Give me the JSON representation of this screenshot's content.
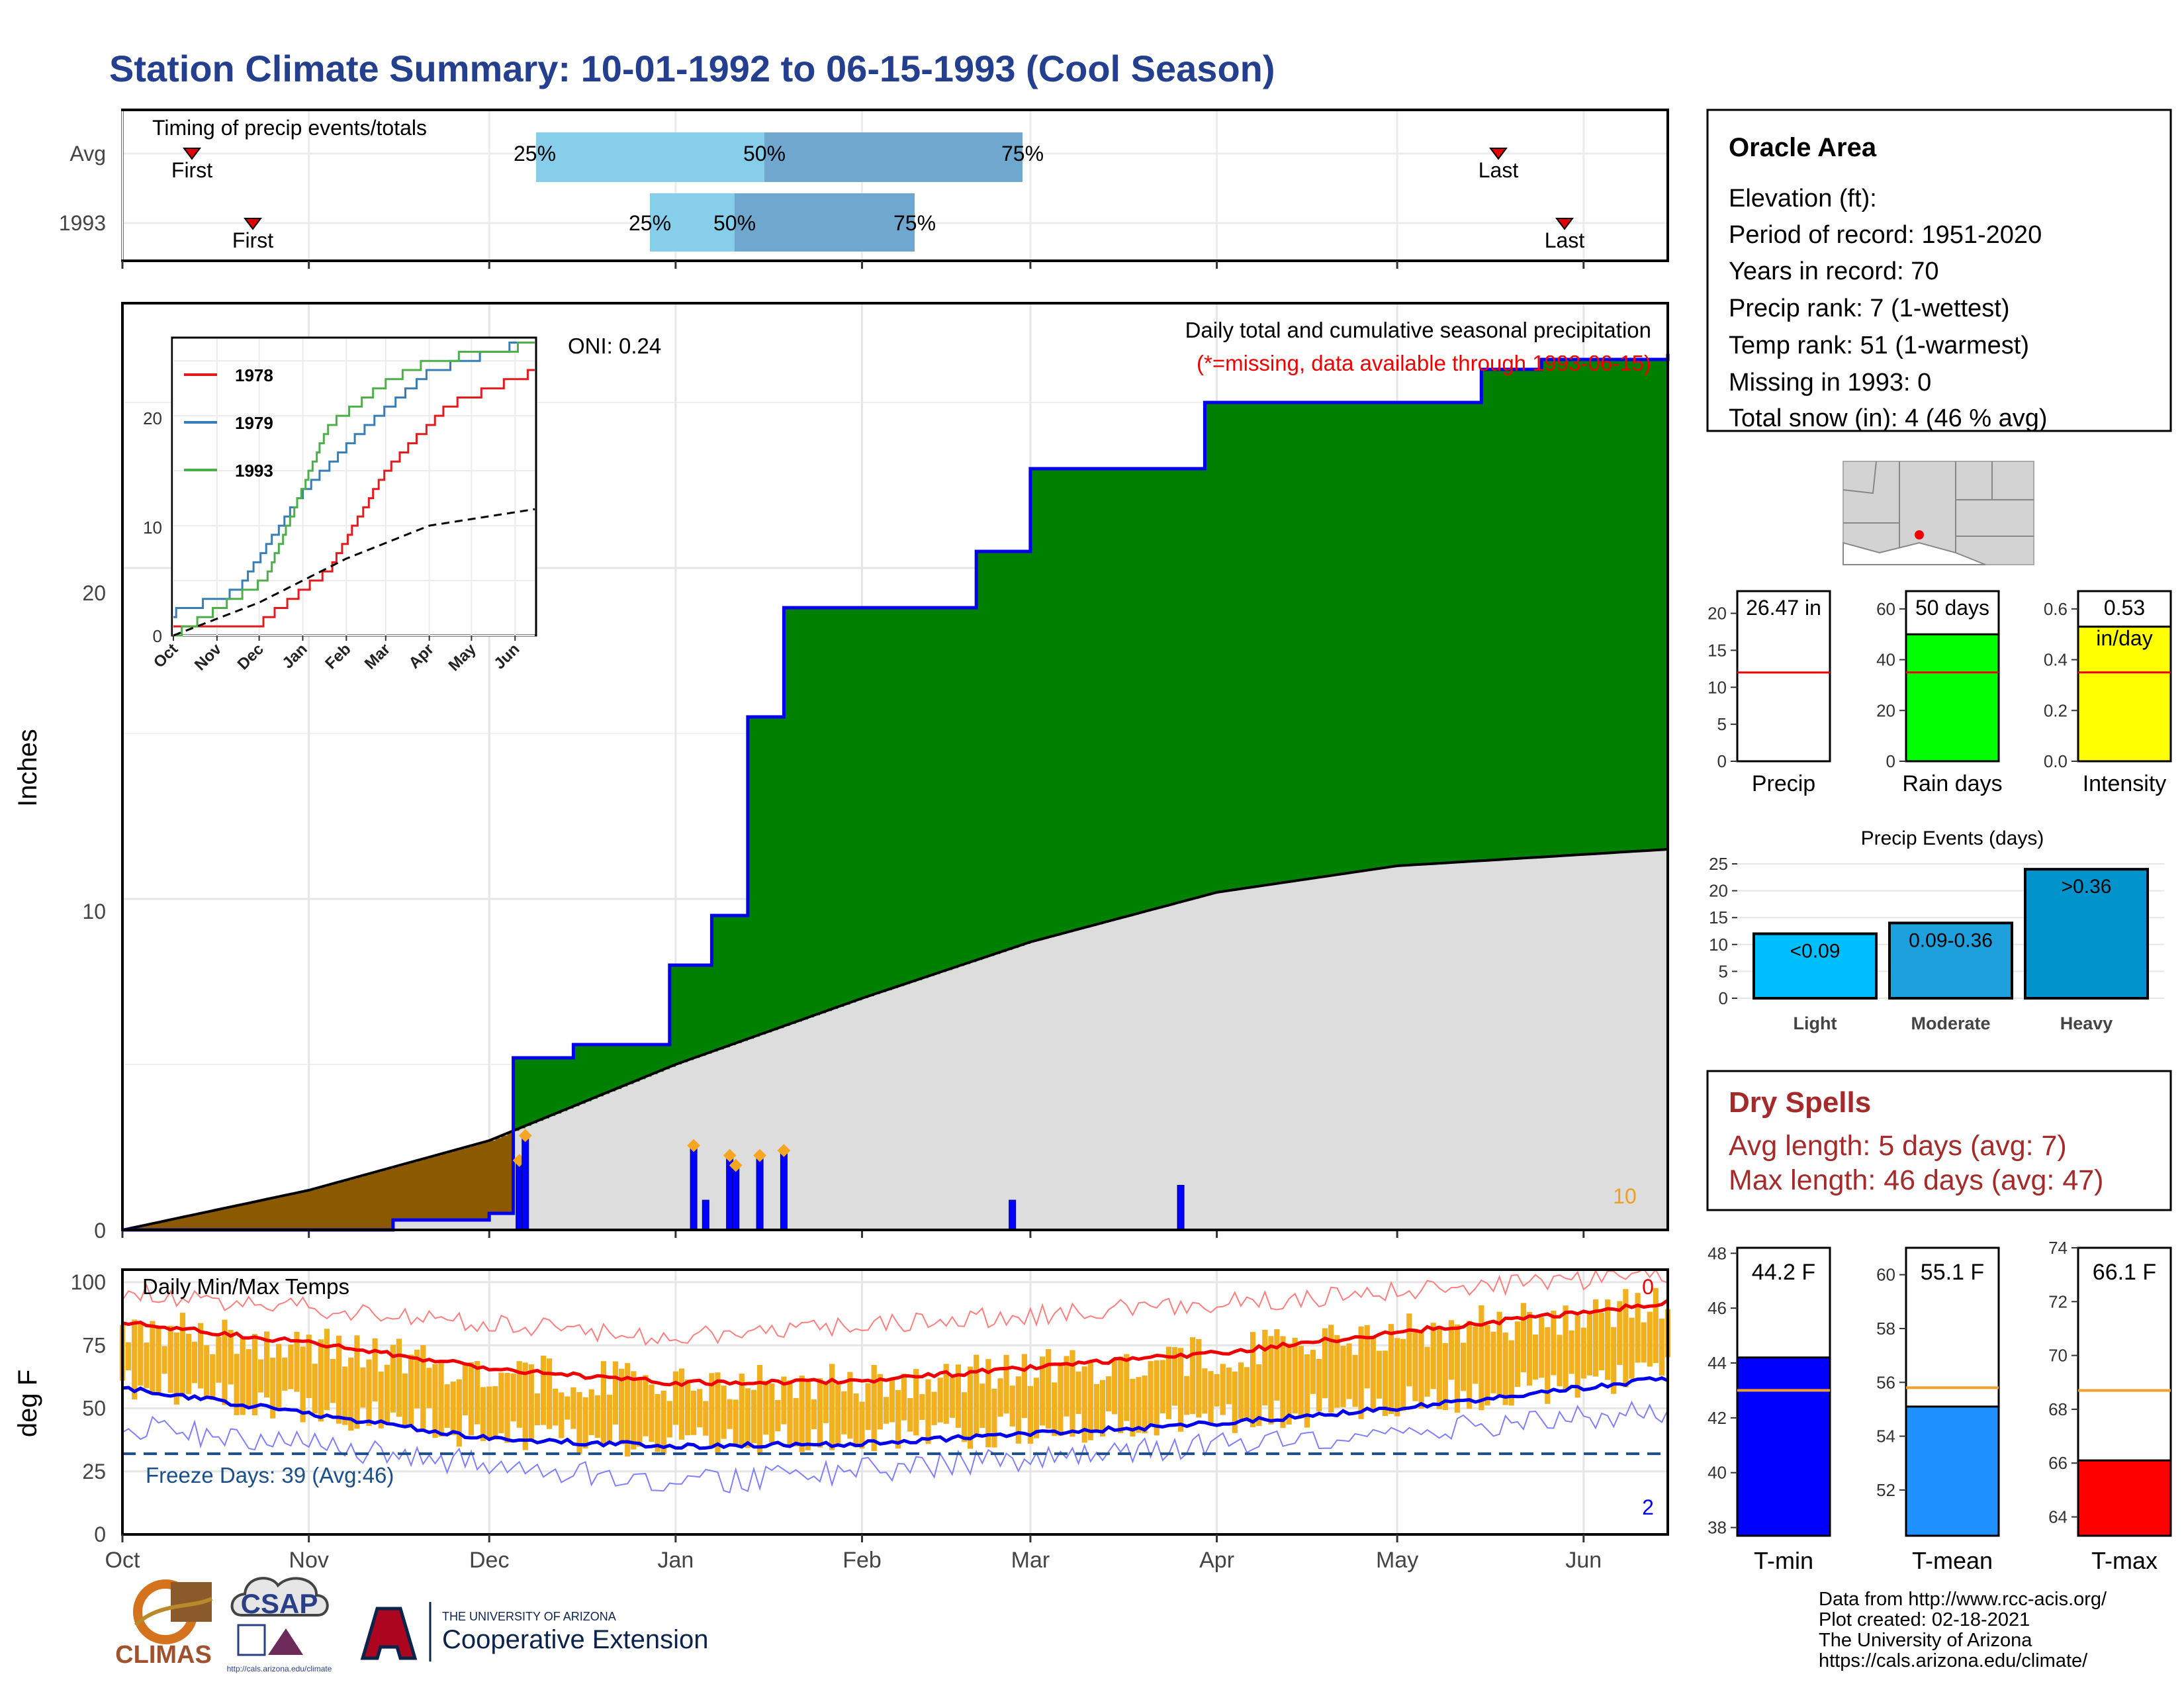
{
  "title": "Station Climate Summary: 10-01-1992 to 06-15-1993 (Cool Season)",
  "timing": {
    "title": "Timing of precip events/totals",
    "row_labels": [
      "Avg",
      "1993"
    ],
    "first_label": "First",
    "last_label": "Last",
    "pct_labels": [
      "25%",
      "50%",
      "75%"
    ]
  },
  "main_panel": {
    "ylabel": "Inches",
    "title": "Daily total and cumulative seasonal precipitation",
    "subtitle": "(*=missing, data available through 1993-06-15)",
    "oni": "ONI: 0.24",
    "yticks": [
      "0",
      "10",
      "20"
    ],
    "max_daily_label": "10"
  },
  "inset": {
    "legend": [
      "1978",
      "1979",
      "1993"
    ],
    "yticks": [
      "0",
      "10",
      "20"
    ],
    "xticks": [
      "Oct",
      "Nov",
      "Dec",
      "Jan",
      "Feb",
      "Mar",
      "Apr",
      "May",
      "Jun"
    ]
  },
  "temp_panel": {
    "ylabel": "deg F",
    "title": "Daily Min/Max Temps",
    "freeze_label": "Freeze Days: 39 (Avg:46)",
    "yticks": [
      "0",
      "25",
      "50",
      "75",
      "100"
    ],
    "xticks": [
      "Oct",
      "Nov",
      "Dec",
      "Jan",
      "Feb",
      "Mar",
      "Apr",
      "May",
      "Jun"
    ],
    "count_top": "0",
    "count_bottom": "2"
  },
  "station": {
    "name": "Oracle Area",
    "lines": [
      "Elevation (ft):",
      "Period of record: 1951-2020",
      "Years in record: 70",
      "Precip rank: 7 (1-wettest)",
      "Temp rank: 51 (1-warmest)",
      "Missing in 1993: 0",
      "Total snow (in): 4 (46 % avg)"
    ]
  },
  "mini_bars": [
    {
      "label": "Precip",
      "value_label": "26.47 in",
      "value": 26.47,
      "avg": 12.0,
      "ymax": 23,
      "ticks": [
        "0",
        "5",
        "10",
        "15",
        "20"
      ],
      "color": "#ffffff"
    },
    {
      "label": "Rain days",
      "value_label": "50 days",
      "value": 50,
      "avg": 35,
      "ymax": 67,
      "ticks": [
        "0",
        "20",
        "40",
        "60"
      ],
      "color": "#00ff00"
    },
    {
      "label": "Intensity",
      "value_label": "0.53",
      "value2_label": "in/day",
      "value": 0.53,
      "avg": 0.35,
      "ymax": 0.67,
      "ticks": [
        "0.0",
        "0.2",
        "0.4",
        "0.6"
      ],
      "color": "#ffff00"
    }
  ],
  "precip_events": {
    "title": "Precip Events (days)",
    "yticks": [
      "0",
      "5",
      "10",
      "15",
      "20",
      "25"
    ],
    "bars": [
      {
        "category": "Light",
        "label": "<0.09",
        "value": 12
      },
      {
        "category": "Moderate",
        "label": "0.09-0.36",
        "value": 14
      },
      {
        "category": "Heavy",
        "label": ">0.36",
        "value": 24
      }
    ]
  },
  "dry_spells": {
    "title": "Dry Spells",
    "avg": "Avg length: 5 days (avg: 7)",
    "max": "Max length: 46 days (avg: 47)"
  },
  "temp_bars": [
    {
      "label": "T-min",
      "value_label": "44.2 F",
      "value": 44.2,
      "avg": 43.0,
      "ymin": 37.7,
      "ymax": 48.2,
      "ticks": [
        "38",
        "40",
        "42",
        "44",
        "46",
        "48"
      ],
      "color": "#0000ff"
    },
    {
      "label": "T-mean",
      "value_label": "55.1 F",
      "value": 55.1,
      "avg": 55.8,
      "ymin": 50.3,
      "ymax": 61.0,
      "ticks": [
        "52",
        "54",
        "56",
        "58",
        "60"
      ],
      "color": "#1e90ff"
    },
    {
      "label": "T-max",
      "value_label": "66.1 F",
      "value": 66.1,
      "avg": 68.7,
      "ymin": 63.3,
      "ymax": 74.0,
      "ticks": [
        "64",
        "66",
        "68",
        "70",
        "72",
        "74"
      ],
      "color": "#ff0000"
    }
  ],
  "footer": {
    "lines": [
      "Data from http://www.rcc-acis.org/",
      "Plot created: 02-18-2021",
      "The University of Arizona",
      "https://cals.arizona.edu/climate/"
    ],
    "logo_climas": "CLIMAS",
    "logo_csap": "CSAP",
    "logo_csap_url": "http://cals.arizona.edu/climate",
    "ua_small": "THE UNIVERSITY OF ARIZONA",
    "ua_big": "Cooperative Extension"
  },
  "chart_data": [
    {
      "type": "area",
      "name": "Daily total and cumulative seasonal precipitation",
      "x_unit": "date",
      "cumulative_1993": {
        "x": [
          "1992-10-01",
          "1992-11-15",
          "1992-12-01",
          "1992-12-05",
          "1992-12-15",
          "1992-12-31",
          "1993-01-07",
          "1993-01-13",
          "1993-01-19",
          "1993-02-10",
          "1993-02-20",
          "1993-03-01",
          "1993-03-25",
          "1993-03-30",
          "1993-05-15",
          "1993-05-25",
          "1993-06-15"
        ],
        "y": [
          0.0,
          0.3,
          0.5,
          5.2,
          5.6,
          8.0,
          9.5,
          15.5,
          18.8,
          18.8,
          20.5,
          23.0,
          23.0,
          25.0,
          26.0,
          26.3,
          26.47
        ]
      },
      "cumulative_avg": {
        "x": [
          "1992-10-01",
          "1992-11-01",
          "1992-12-01",
          "1993-01-01",
          "1993-02-01",
          "1993-03-01",
          "1993-04-01",
          "1993-05-01",
          "1993-06-15"
        ],
        "y": [
          0.0,
          1.2,
          2.7,
          5.0,
          7.0,
          8.7,
          10.2,
          11.0,
          11.5
        ]
      },
      "daily_bars": [
        {
          "x": "1992-12-06",
          "y": 1.4
        },
        {
          "x": "1992-12-07",
          "y": 1.9
        },
        {
          "x": "1993-01-04",
          "y": 1.7
        },
        {
          "x": "1993-01-06",
          "y": 0.6
        },
        {
          "x": "1993-01-10",
          "y": 1.5
        },
        {
          "x": "1993-01-11",
          "y": 1.3
        },
        {
          "x": "1993-01-15",
          "y": 1.5
        },
        {
          "x": "1993-01-19",
          "y": 1.6
        },
        {
          "x": "1993-02-26",
          "y": 0.6
        },
        {
          "x": "1993-03-26",
          "y": 0.9
        }
      ],
      "ylim": [
        0,
        28
      ],
      "ylabel": "Inches"
    },
    {
      "type": "line",
      "name": "inset",
      "series": [
        {
          "name": "1978",
          "x": [
            "1977-10-01",
            "1977-12-01",
            "1978-01-20",
            "1978-03-01",
            "1978-04-15",
            "1978-06-15"
          ],
          "y": [
            1,
            1,
            6,
            15,
            21,
            24
          ]
        },
        {
          "name": "1979",
          "x": [
            "1978-10-01",
            "1978-11-15",
            "1979-01-01",
            "1979-02-15",
            "1979-04-01",
            "1979-06-15"
          ],
          "y": [
            2,
            4,
            13,
            19,
            24,
            27
          ]
        },
        {
          "name": "1993",
          "x": [
            "1992-10-01",
            "1992-12-05",
            "1993-01-19",
            "1993-03-01",
            "1993-04-01",
            "1993-06-15"
          ],
          "y": [
            0,
            5,
            19,
            23,
            25,
            26.5
          ]
        },
        {
          "name": "avg",
          "x": [
            "1992-10-01",
            "1992-12-01",
            "1993-02-01",
            "1993-04-01",
            "1993-06-15"
          ],
          "y": [
            0,
            3,
            7,
            10,
            11.5
          ]
        }
      ],
      "ylim": [
        0,
        27
      ]
    },
    {
      "type": "bar",
      "name": "Daily Min/Max Temps",
      "x_unit": "date",
      "max_normal": {
        "x": [
          "1992-10-01",
          "1992-11-01",
          "1992-12-01",
          "1993-01-01",
          "1993-02-01",
          "1993-03-01",
          "1993-04-01",
          "1993-05-01",
          "1993-06-15"
        ],
        "y": [
          84,
          76,
          66,
          60,
          61,
          66,
          72,
          80,
          92
        ]
      },
      "min_normal": {
        "x": [
          "1992-10-01",
          "1992-11-01",
          "1992-12-01",
          "1993-01-01",
          "1993-02-01",
          "1993-03-01",
          "1993-04-01",
          "1993-05-01",
          "1993-06-15"
        ],
        "y": [
          58,
          48,
          38,
          35,
          36,
          40,
          44,
          50,
          62
        ]
      },
      "record_high": {
        "x": [
          "1992-10-01",
          "1993-01-01",
          "1993-06-15"
        ],
        "y": [
          100,
          82,
          107
        ]
      },
      "record_low": {
        "x": [
          "1992-10-01",
          "1993-01-01",
          "1993-06-15"
        ],
        "y": [
          38,
          15,
          44
        ]
      },
      "freeze_line": 32,
      "ylim": [
        0,
        105
      ],
      "ylabel": "deg F"
    }
  ]
}
